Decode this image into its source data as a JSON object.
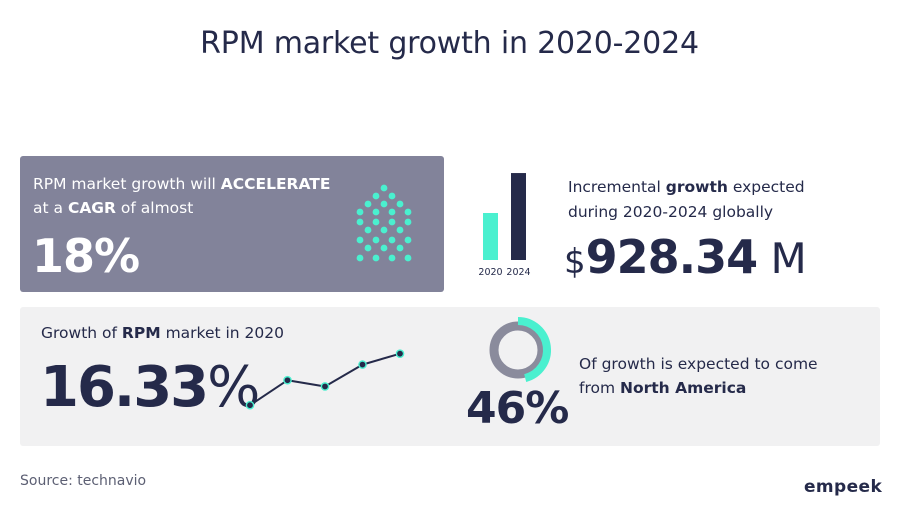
{
  "title": "RPM market growth in 2020-2024",
  "accelerate_card": {
    "line1_prefix": "RPM market growth will ",
    "line1_bold": "ACCELERATE",
    "line2_prefix": "at a ",
    "line2_bold": "CAGR",
    "line2_suffix": " of almost",
    "value": "18%",
    "icon": "upward-chevron-dots-icon"
  },
  "incremental_card": {
    "line1_prefix": "Incremental ",
    "line1_bold": "growth",
    "line1_suffix": " expected",
    "line2": "during 2020-2024 globally",
    "currency": "$",
    "amount": "928.34",
    "unit": " M"
  },
  "growth_card": {
    "label_prefix": "Growth of ",
    "label_bold": "RPM",
    "label_suffix": " market in 2020",
    "value_number": "16.33",
    "value_percent": "%"
  },
  "region_card": {
    "value": "46%",
    "line1": "Of growth is expected to come",
    "line2_prefix": "from ",
    "line2_bold": "North America"
  },
  "source": "Source: technavio",
  "brand": "empeek",
  "colors": {
    "navy": "#252a4a",
    "teal": "#4af0cf",
    "slate": "#82839a",
    "gray": "#8a8b9c",
    "card_bg": "#f1f1f2"
  },
  "chart_data": [
    {
      "type": "bar",
      "categories": [
        "2020",
        "2024"
      ],
      "values": [
        2,
        3.7
      ],
      "ylim": [
        0,
        4
      ],
      "colors": [
        "#4af0cf",
        "#252a4a"
      ],
      "title": "",
      "xlabel": "",
      "ylabel": "",
      "grid": false
    },
    {
      "type": "line",
      "x": [
        1,
        2,
        3,
        4,
        5
      ],
      "values": [
        1.0,
        2.6,
        2.2,
        3.6,
        4.3
      ],
      "ylim": [
        0.5,
        4.6
      ],
      "title": "",
      "xlabel": "",
      "ylabel": "",
      "grid": false
    },
    {
      "type": "pie",
      "categories": [
        "",
        ""
      ],
      "values": [
        46,
        54
      ],
      "colors": [
        "#4af0cf",
        "#8a8b9c"
      ],
      "title": "",
      "grid": false
    }
  ]
}
